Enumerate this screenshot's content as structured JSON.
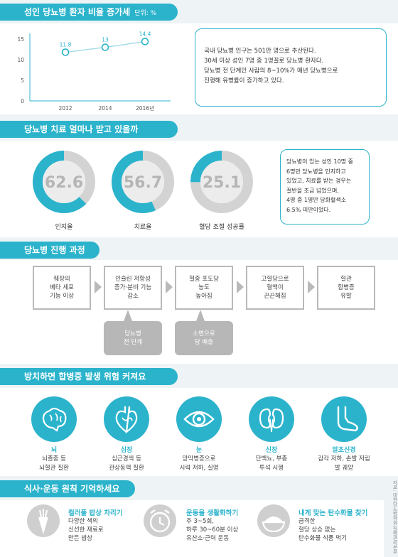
{
  "sec1": {
    "title": "성인 당뇨병 환자 비율 증가세",
    "unit": "단위: %",
    "note": [
      "국내 당뇨병 인구는 501만 명으로 추산된다.",
      "30세 이상 성인 7명 중 1명꼴로 당뇨병 환자다.",
      "당뇨병 전 단계인 사람의 8~10%가 매년 당뇨병으로",
      "진행해 유병률이 증가하고 있다."
    ]
  },
  "chart_data": {
    "type": "line",
    "x": [
      "2012",
      "2014",
      "2016년"
    ],
    "y_ticks": [
      "0",
      "5",
      "10",
      "15"
    ],
    "ylim": [
      0,
      15
    ],
    "series": [
      {
        "values": [
          11.8,
          13,
          14.4
        ]
      }
    ],
    "data_labels": [
      "11.8",
      "13",
      "14.4"
    ]
  },
  "sec2": {
    "title": "당뇨병 치료 얼마나 받고 있을까",
    "donuts": [
      {
        "value": "62.6",
        "fraction": 0.626,
        "label": "인지율"
      },
      {
        "value": "56.7",
        "fraction": 0.567,
        "label": "치료율"
      },
      {
        "value": "25.1",
        "fraction": 0.251,
        "label": "혈당 조절 성공률"
      }
    ],
    "note": [
      "당뇨병이 있는 성인 10명 중",
      "6명만 당뇨병을 인지하고",
      "있었고, 치료를 받는 경우는",
      "절반을 조금 넘었으며,",
      "4명 중 1명만 당화혈색소",
      "6.5% 미만이었다."
    ]
  },
  "sec3": {
    "title": "당뇨병 진행 과정",
    "steps": [
      [
        "췌장의",
        "베타 세포",
        "기능 이상"
      ],
      [
        "인슐린 저항성",
        "증가·분비 기능",
        "감소"
      ],
      [
        "혈중 포도당",
        "농도",
        "높아짐"
      ],
      [
        "고혈당으로",
        "혈액이",
        "끈끈해짐"
      ],
      [
        "혈관",
        "합병증",
        "유발"
      ]
    ],
    "stages": [
      [
        "당뇨병",
        "전 단계"
      ],
      [
        "소변으로",
        "당 배출"
      ]
    ]
  },
  "sec4": {
    "title": "방치하면 합병증 발생 위험 커져요",
    "organs": [
      {
        "icon": "brain-icon",
        "name": "뇌",
        "desc": [
          "뇌졸중 등",
          "뇌혈관 질환"
        ]
      },
      {
        "icon": "heart-icon",
        "name": "심장",
        "desc": [
          "심근경색 등",
          "관상동맥 질환"
        ]
      },
      {
        "icon": "eye-icon",
        "name": "눈",
        "desc": [
          "망막병증으로",
          "시력 저하, 실명"
        ]
      },
      {
        "icon": "kidney-icon",
        "name": "신장",
        "desc": [
          "단백뇨, 부종",
          "투석 시행"
        ]
      },
      {
        "icon": "foot-icon",
        "name": "말초신경",
        "desc": [
          "감각 저하, 손발 저림",
          "발 궤양"
        ]
      }
    ]
  },
  "sec5": {
    "title": "식사·운동 원칙 기억하세요",
    "principles": [
      {
        "icon": "carrot-icon",
        "title": "컬러풀 밥상 차리기",
        "desc": [
          "다양한 색의",
          "신선한 재료로",
          "만든 밥상"
        ]
      },
      {
        "icon": "alarm-clock-icon",
        "title": "운동을 생활화하기",
        "desc": [
          "주 3~5회,",
          "하루 30~60분 이상",
          "유산소·근력 운동"
        ]
      },
      {
        "icon": "rice-bowl-icon",
        "title": "내게 맞는 탄수화물 찾기",
        "desc": [
          "급격한",
          "혈당 상승 없는",
          "탄수화물 식품 먹기"
        ]
      }
    ]
  },
  "source": "자료: 대한당뇨병학회·질병관리본부"
}
